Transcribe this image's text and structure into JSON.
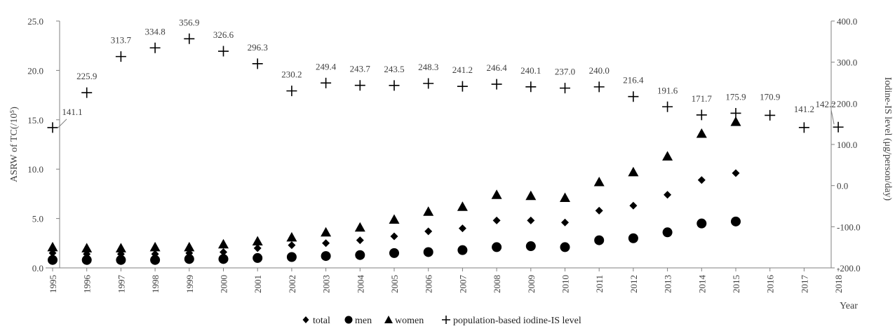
{
  "chart_data": {
    "type": "scatter",
    "title": "",
    "xlabel": "Year",
    "ylabel_left": "ASRW of TC(/10⁵)",
    "ylabel_right": "Iodine-IS level (μg/person/day)",
    "x": [
      1995,
      1996,
      1997,
      1998,
      1999,
      2000,
      2001,
      2002,
      2003,
      2004,
      2005,
      2006,
      2007,
      2008,
      2009,
      2010,
      2011,
      2012,
      2013,
      2014,
      2015,
      2016,
      2017,
      2018
    ],
    "ylim_left": [
      0,
      25
    ],
    "ylim_right": [
      -200,
      400
    ],
    "yticks_left": [
      "0.0",
      "5.0",
      "10.0",
      "15.0",
      "20.0",
      "25.0"
    ],
    "yticks_right": [
      "-200.0",
      "-100.0",
      "0.0",
      "100.0",
      "200.0",
      "300.0",
      "400.0"
    ],
    "grid": false,
    "legend_position": "bottom",
    "series": [
      {
        "name": "total",
        "marker": "diamond",
        "axis": "left",
        "values": [
          1.5,
          1.4,
          1.4,
          1.4,
          1.5,
          1.6,
          2.0,
          2.3,
          2.5,
          2.8,
          3.2,
          3.7,
          4.0,
          4.8,
          4.8,
          4.6,
          5.8,
          6.3,
          7.4,
          8.9,
          9.6,
          null,
          null,
          null
        ]
      },
      {
        "name": "men",
        "marker": "circle",
        "axis": "left",
        "values": [
          0.8,
          0.8,
          0.8,
          0.8,
          0.9,
          0.9,
          1.0,
          1.1,
          1.2,
          1.3,
          1.5,
          1.6,
          1.8,
          2.1,
          2.2,
          2.1,
          2.8,
          3.0,
          3.6,
          4.5,
          4.7,
          null,
          null,
          null
        ]
      },
      {
        "name": "women",
        "marker": "triangle",
        "axis": "left",
        "values": [
          2.1,
          2.0,
          2.0,
          2.1,
          2.1,
          2.4,
          2.7,
          3.1,
          3.6,
          4.1,
          4.9,
          5.7,
          6.2,
          7.4,
          7.3,
          7.1,
          8.7,
          9.7,
          11.3,
          13.6,
          14.8,
          null,
          null,
          null
        ]
      },
      {
        "name": "population-based iodine-IS level",
        "marker": "plus",
        "axis": "right",
        "values": [
          141.1,
          225.9,
          313.7,
          334.8,
          356.9,
          326.6,
          296.3,
          230.2,
          249.4,
          243.7,
          243.5,
          248.3,
          241.2,
          246.4,
          240.1,
          237.0,
          240.0,
          216.4,
          191.6,
          171.7,
          175.9,
          170.9,
          141.2,
          142.2
        ],
        "labels": [
          "141.1",
          "225.9",
          "313.7",
          "334.8",
          "356.9",
          "326.6",
          "296.3",
          "230.2",
          "249.4",
          "243.7",
          "243.5",
          "248.3",
          "241.2",
          "246.4",
          "240.1",
          "237.0",
          "240.0",
          "216.4",
          "191.6",
          "171.7",
          "175.9",
          "170.9",
          "141.2",
          "142.2"
        ]
      }
    ],
    "colors": {
      "axis": "#808080",
      "marker": "#000000",
      "text": "#404040"
    }
  }
}
